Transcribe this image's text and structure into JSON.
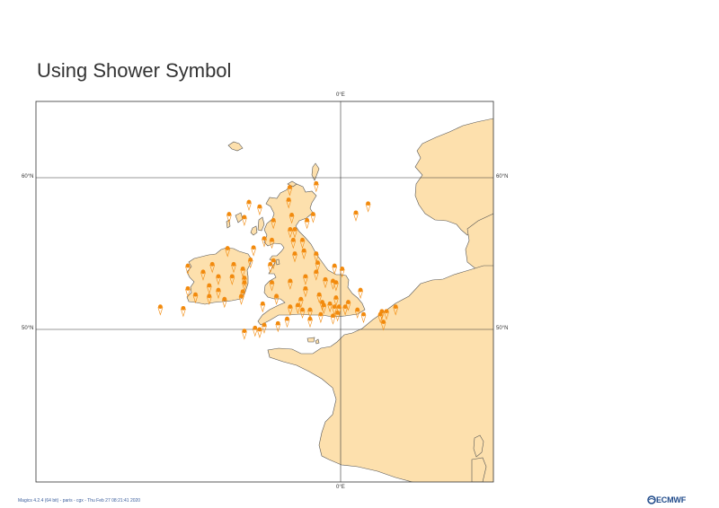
{
  "title": "Using Shower Symbol",
  "map": {
    "projection": "cylindrical",
    "lon_range": [
      -20,
      10
    ],
    "lat_range": [
      45,
      70
    ],
    "land_color": "#fde0ad",
    "sea_color": "#ffffff",
    "coastline_color": "#555555",
    "grid_color": "#333333",
    "gridlines": {
      "longitudes": [
        0
      ],
      "latitudes": [
        60,
        50
      ]
    },
    "tick_labels": {
      "top": "0°E",
      "bottom": "0°E",
      "left_60": "60°N",
      "right_60": "60°N",
      "left_50": "50°N",
      "right_50": "50°N"
    }
  },
  "symbol": {
    "name": "shower-icon",
    "color": "#f28a0d"
  },
  "stations": [
    [
      -3.33,
      59.38
    ],
    [
      -1.6,
      59.63
    ],
    [
      -6.0,
      58.4
    ],
    [
      -3.4,
      58.55
    ],
    [
      -5.3,
      58.1
    ],
    [
      -7.3,
      57.6
    ],
    [
      -6.3,
      57.4
    ],
    [
      -3.2,
      57.55
    ],
    [
      -1.8,
      57.6
    ],
    [
      -4.4,
      57.2
    ],
    [
      -2.2,
      57.2
    ],
    [
      1.0,
      57.7
    ],
    [
      1.8,
      58.3
    ],
    [
      -3.3,
      56.6
    ],
    [
      -3.0,
      56.6
    ],
    [
      -5.0,
      56.0
    ],
    [
      -4.5,
      55.9
    ],
    [
      -3.1,
      55.9
    ],
    [
      -2.5,
      55.9
    ],
    [
      -7.4,
      55.35
    ],
    [
      -5.7,
      55.4
    ],
    [
      -3.0,
      55.0
    ],
    [
      -1.6,
      55.0
    ],
    [
      -2.4,
      55.2
    ],
    [
      -10.0,
      54.2
    ],
    [
      -8.4,
      54.3
    ],
    [
      -9.0,
      53.8
    ],
    [
      -7.0,
      54.3
    ],
    [
      -5.9,
      54.6
    ],
    [
      -6.4,
      54.0
    ],
    [
      -4.6,
      54.3
    ],
    [
      -4.4,
      54.55
    ],
    [
      -7.1,
      53.5
    ],
    [
      -8.0,
      53.5
    ],
    [
      -6.3,
      53.4
    ],
    [
      -6.3,
      53.1
    ],
    [
      -8.6,
      52.9
    ],
    [
      -10.0,
      52.7
    ],
    [
      -8.6,
      52.2
    ],
    [
      -6.5,
      52.2
    ],
    [
      -6.4,
      52.5
    ],
    [
      -9.5,
      52.3
    ],
    [
      -7.6,
      52.0
    ],
    [
      -11.8,
      51.5
    ],
    [
      -10.3,
      51.4
    ],
    [
      -8.0,
      52.6
    ],
    [
      -1.5,
      54.4
    ],
    [
      -0.4,
      54.2
    ],
    [
      0.1,
      54.0
    ],
    [
      -1.6,
      53.8
    ],
    [
      -2.3,
      53.5
    ],
    [
      -1.0,
      53.3
    ],
    [
      -0.3,
      53.1
    ],
    [
      -0.5,
      53.2
    ],
    [
      -3.3,
      53.2
    ],
    [
      -4.5,
      53.1
    ],
    [
      -2.3,
      52.7
    ],
    [
      -1.4,
      52.3
    ],
    [
      -0.3,
      52.1
    ],
    [
      0.5,
      51.8
    ],
    [
      1.3,
      52.6
    ],
    [
      -2.6,
      52.0
    ],
    [
      -4.2,
      52.2
    ],
    [
      -5.1,
      51.7
    ],
    [
      -3.3,
      51.5
    ],
    [
      -2.8,
      51.6
    ],
    [
      -2.5,
      51.3
    ],
    [
      -2.0,
      51.3
    ],
    [
      -1.2,
      51.8
    ],
    [
      -1.1,
      51.6
    ],
    [
      -0.7,
      51.7
    ],
    [
      -0.4,
      51.5
    ],
    [
      -0.1,
      51.5
    ],
    [
      0.3,
      51.5
    ],
    [
      1.1,
      51.3
    ],
    [
      -1.3,
      51.0
    ],
    [
      -2.0,
      50.7
    ],
    [
      -3.5,
      50.7
    ],
    [
      -4.1,
      50.4
    ],
    [
      -5.0,
      50.3
    ],
    [
      -5.6,
      50.1
    ],
    [
      -5.3,
      50.0
    ],
    [
      -0.5,
      50.9
    ],
    [
      -0.2,
      51.1
    ],
    [
      1.5,
      51.0
    ],
    [
      -6.3,
      49.9
    ],
    [
      2.6,
      51.0
    ],
    [
      2.8,
      50.5
    ],
    [
      2.7,
      51.2
    ],
    [
      3.6,
      51.5
    ],
    [
      3.0,
      51.2
    ]
  ],
  "footer": "Magics 4.2.4 (64 bit) - paris - cgx - Thu Feb 27 08:21:41 2020",
  "logo_text": "ECMWF",
  "logo_color": "#1f4a8a"
}
